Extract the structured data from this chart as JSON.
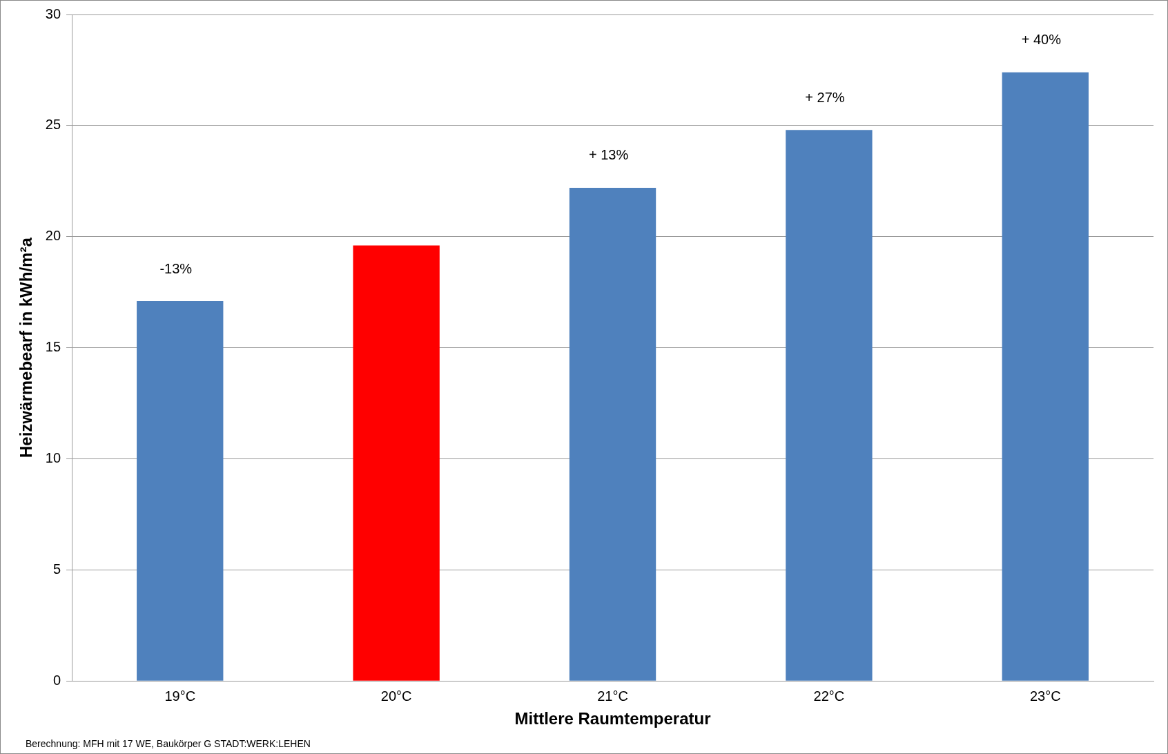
{
  "chart_data": {
    "type": "bar",
    "xlabel": "Mittlere Raumtemperatur",
    "ylabel": "Heizwärmebearf in kWh/m²a",
    "categories": [
      "19°C",
      "20°C",
      "21°C",
      "22°C",
      "23°C"
    ],
    "values": [
      17.1,
      19.6,
      22.2,
      24.8,
      27.4
    ],
    "colors": [
      "#4f81bd",
      "#ff0000",
      "#4f81bd",
      "#4f81bd",
      "#4f81bd"
    ],
    "ylim": [
      0,
      30
    ],
    "yticks": [
      0,
      5,
      10,
      15,
      20,
      25,
      30
    ],
    "grid": "y",
    "annotations": [
      {
        "text": "-13%",
        "x": "19°C",
        "y": 17.1
      },
      {
        "text": "+ 13%",
        "x": "21°C",
        "y": 22.2
      },
      {
        "text": "+ 27%",
        "x": "22°C",
        "y": 24.8
      },
      {
        "text": "+ 40%",
        "x": "23°C",
        "y": 27.4
      },
      "Berechnung: MFH mit 17 WE, Baukörper G STADT:WERK:LEHEN"
    ]
  }
}
